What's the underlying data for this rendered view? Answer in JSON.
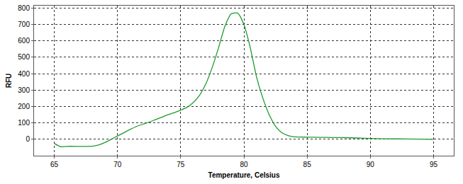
{
  "chart_data": {
    "type": "line",
    "x_label": "Temperature, Celsius",
    "y_label": "RFU",
    "x": [
      65,
      65.5,
      66,
      67,
      68,
      68.5,
      69,
      69.5,
      70,
      70.5,
      71,
      71.5,
      72,
      72.5,
      73,
      73.5,
      74,
      74.5,
      75,
      75.5,
      76,
      76.5,
      77,
      77.5,
      78,
      78.5,
      79,
      79.5,
      80,
      80.5,
      81,
      81.5,
      82,
      82.5,
      83,
      83.5,
      84,
      85,
      86,
      87,
      88,
      89,
      90,
      91,
      93,
      95
    ],
    "values": [
      -25,
      -45,
      -43,
      -43,
      -42,
      -35,
      -20,
      0,
      20,
      40,
      60,
      78,
      92,
      105,
      120,
      135,
      150,
      163,
      178,
      195,
      225,
      270,
      340,
      440,
      560,
      690,
      765,
      770,
      700,
      560,
      380,
      250,
      150,
      80,
      40,
      22,
      15,
      13,
      12,
      11,
      10,
      8,
      5,
      3,
      2,
      0
    ],
    "color": "#1f9a2f",
    "xlim": [
      63.4,
      96.6
    ],
    "xticks": [
      65,
      70,
      75,
      80,
      85,
      90,
      95
    ],
    "ylim": [
      -100,
      815
    ],
    "yticks": [
      0,
      100,
      200,
      300,
      400,
      500,
      600,
      700,
      800
    ],
    "grid": true
  }
}
